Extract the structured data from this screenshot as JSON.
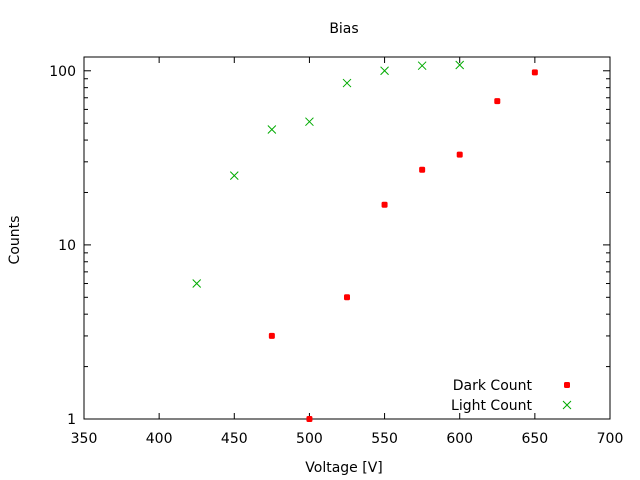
{
  "chart_data": {
    "type": "scatter",
    "title": "Bias",
    "xlabel": "Voltage [V]",
    "ylabel": "Counts",
    "xlim": [
      350,
      700
    ],
    "ylim": [
      1,
      120
    ],
    "yscale": "log",
    "grid": false,
    "legend_position": "bottom-right",
    "x_ticks": [
      350,
      400,
      450,
      500,
      550,
      600,
      650,
      700
    ],
    "y_ticks": [
      1,
      10,
      100
    ],
    "series": [
      {
        "name": "Dark Count",
        "color": "#ff0000",
        "marker": "filled-dot",
        "points": [
          {
            "x": 475,
            "y": 3
          },
          {
            "x": 500,
            "y": 1
          },
          {
            "x": 525,
            "y": 5
          },
          {
            "x": 550,
            "y": 17
          },
          {
            "x": 575,
            "y": 27
          },
          {
            "x": 600,
            "y": 33
          },
          {
            "x": 625,
            "y": 67
          },
          {
            "x": 650,
            "y": 98
          }
        ]
      },
      {
        "name": "Light Count",
        "color": "#00aa00",
        "marker": "x-cross",
        "points": [
          {
            "x": 425,
            "y": 6
          },
          {
            "x": 450,
            "y": 25
          },
          {
            "x": 475,
            "y": 46
          },
          {
            "x": 500,
            "y": 51
          },
          {
            "x": 525,
            "y": 85
          },
          {
            "x": 550,
            "y": 100
          },
          {
            "x": 575,
            "y": 107
          },
          {
            "x": 600,
            "y": 108
          }
        ]
      }
    ]
  }
}
